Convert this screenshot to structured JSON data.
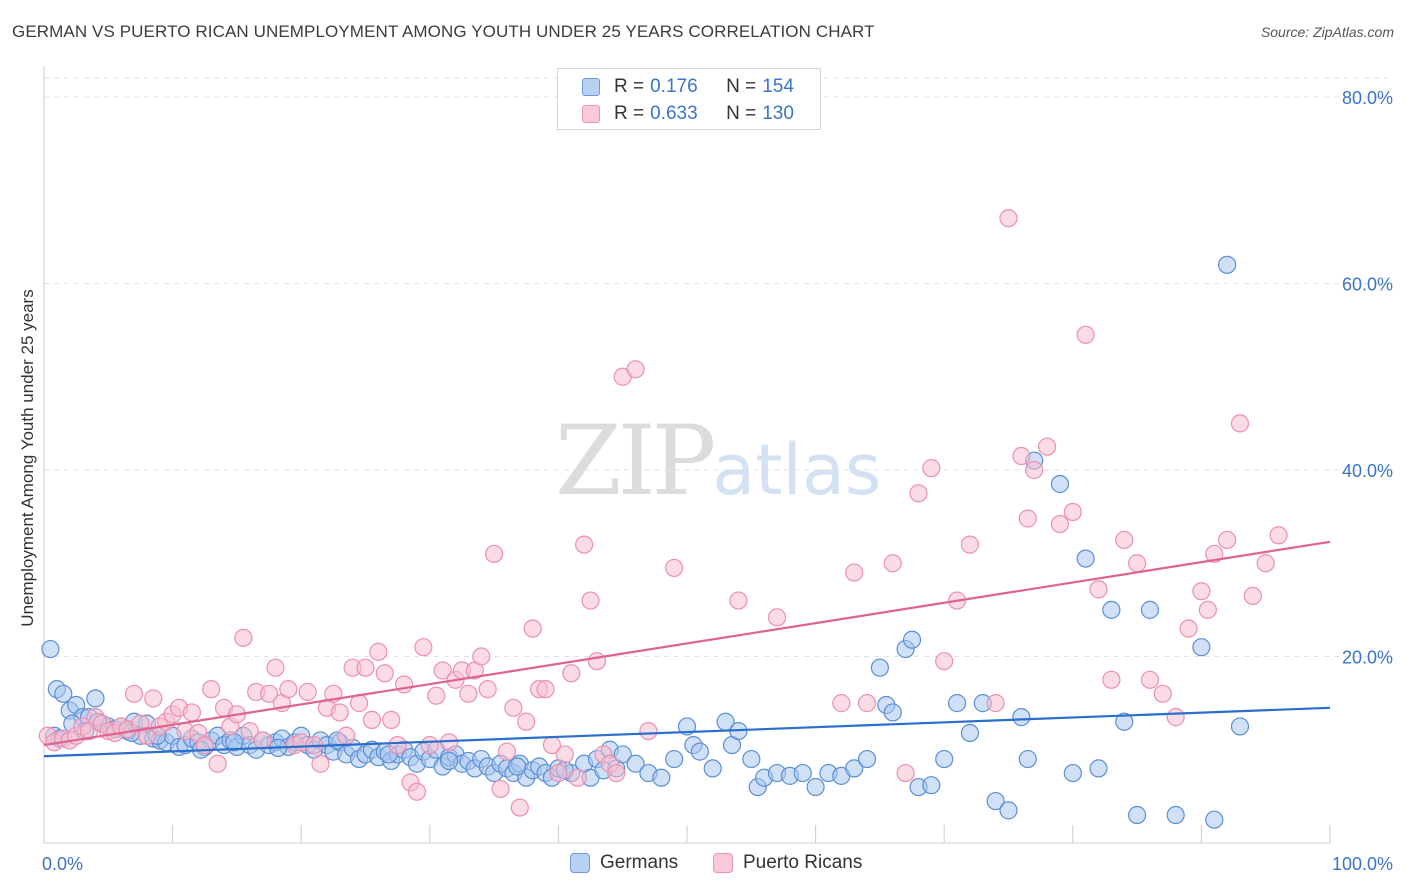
{
  "title": "GERMAN VS PUERTO RICAN UNEMPLOYMENT AMONG YOUTH UNDER 25 YEARS CORRELATION CHART",
  "source": "Source: ZipAtlas.com",
  "watermark": {
    "zip": "ZIP",
    "atlas": "atlas"
  },
  "legend": {
    "rows": [
      {
        "r_label": "R =",
        "r_value": "0.176",
        "n_label": "N =",
        "n_value": "154"
      },
      {
        "r_label": "R =",
        "r_value": "0.633",
        "n_label": "N =",
        "n_value": "130"
      }
    ]
  },
  "bottom_legend": [
    "Germans",
    "Puerto Ricans"
  ],
  "colors": {
    "german_fill": "#a9c7ef",
    "german_stroke": "#5b8fd6",
    "german_line": "#2a6fcc",
    "pr_fill": "#f7bfd0",
    "pr_stroke": "#ec8fb0",
    "pr_line": "#e0638f",
    "tick_label": "#3b74c9",
    "grid": "#e2e2e2"
  },
  "chart_data": {
    "type": "scatter",
    "title": "GERMAN VS PUERTO RICAN UNEMPLOYMENT AMONG YOUTH UNDER 25 YEARS CORRELATION CHART",
    "xlabel": "",
    "ylabel": "Unemployment Among Youth under 25 years",
    "xlim": [
      0,
      100
    ],
    "ylim": [
      0,
      80
    ],
    "x_tick_labels": [
      "0.0%",
      "100.0%"
    ],
    "y_ticks": [
      20,
      40,
      60,
      80
    ],
    "y_tick_labels": [
      "20.0%",
      "40.0%",
      "60.0%",
      "80.0%"
    ],
    "grid": true,
    "series": [
      {
        "name": "Germans",
        "r": 0.176,
        "n": 154,
        "trend": {
          "x": [
            0,
            100
          ],
          "y": [
            9.3,
            14.5
          ]
        },
        "points": [
          [
            0.5,
            20.8
          ],
          [
            1,
            16.5
          ],
          [
            1.5,
            16
          ],
          [
            2,
            14.2
          ],
          [
            2.5,
            14.8
          ],
          [
            3,
            13.5
          ],
          [
            3.5,
            13.5
          ],
          [
            4,
            15.5
          ],
          [
            4.5,
            12.8
          ],
          [
            5,
            12.5
          ],
          [
            5.5,
            12.2
          ],
          [
            6,
            12.5
          ],
          [
            6.5,
            12.0
          ],
          [
            7,
            13
          ],
          [
            7.5,
            11.5
          ],
          [
            8,
            12.8
          ],
          [
            8.5,
            11.2
          ],
          [
            9,
            11.0
          ],
          [
            9.5,
            10.8
          ],
          [
            10,
            11.5
          ],
          [
            10.5,
            10.3
          ],
          [
            11,
            10.5
          ],
          [
            11.5,
            11.2
          ],
          [
            12,
            10.8
          ],
          [
            12.5,
            10.3
          ],
          [
            13,
            11.0
          ],
          [
            13.5,
            11.5
          ],
          [
            14,
            10.5
          ],
          [
            14.5,
            11.0
          ],
          [
            15,
            10.3
          ],
          [
            15.5,
            11.5
          ],
          [
            16,
            10.5
          ],
          [
            16.5,
            10.0
          ],
          [
            17,
            11.0
          ],
          [
            17.5,
            10.5
          ],
          [
            18,
            10.8
          ],
          [
            18.5,
            11.2
          ],
          [
            19,
            10.3
          ],
          [
            19.5,
            10.8
          ],
          [
            20,
            11.5
          ],
          [
            20.5,
            10.5
          ],
          [
            21,
            10.0
          ],
          [
            21.5,
            11.0
          ],
          [
            22,
            10.5
          ],
          [
            22.5,
            9.8
          ],
          [
            23,
            10.8
          ],
          [
            23.5,
            9.5
          ],
          [
            24,
            10.2
          ],
          [
            24.5,
            9.0
          ],
          [
            25,
            9.5
          ],
          [
            25.5,
            10.0
          ],
          [
            26,
            9.2
          ],
          [
            26.5,
            9.8
          ],
          [
            27,
            8.8
          ],
          [
            27.5,
            9.5
          ],
          [
            28,
            10.0
          ],
          [
            28.5,
            9.2
          ],
          [
            29,
            8.5
          ],
          [
            29.5,
            9.8
          ],
          [
            30,
            9.0
          ],
          [
            30.5,
            10.0
          ],
          [
            31,
            8.2
          ],
          [
            31.5,
            9.2
          ],
          [
            32,
            9.5
          ],
          [
            32.5,
            8.5
          ],
          [
            33,
            8.8
          ],
          [
            33.5,
            8.0
          ],
          [
            34,
            9.0
          ],
          [
            34.5,
            8.2
          ],
          [
            35,
            7.5
          ],
          [
            35.5,
            8.5
          ],
          [
            36,
            8.0
          ],
          [
            36.5,
            7.5
          ],
          [
            37,
            8.5
          ],
          [
            37.5,
            7.0
          ],
          [
            38,
            7.8
          ],
          [
            38.5,
            8.2
          ],
          [
            39,
            7.5
          ],
          [
            39.5,
            7.0
          ],
          [
            40,
            8.0
          ],
          [
            41,
            7.5
          ],
          [
            42,
            8.5
          ],
          [
            42.5,
            7.0
          ],
          [
            43,
            9.0
          ],
          [
            43.5,
            7.8
          ],
          [
            44,
            10.0
          ],
          [
            44.5,
            8.0
          ],
          [
            45,
            9.5
          ],
          [
            46,
            8.5
          ],
          [
            47,
            7.5
          ],
          [
            48,
            7.0
          ],
          [
            49,
            9.0
          ],
          [
            50,
            12.5
          ],
          [
            50.5,
            10.5
          ],
          [
            51,
            9.8
          ],
          [
            52,
            8.0
          ],
          [
            53,
            13.0
          ],
          [
            53.5,
            10.5
          ],
          [
            54,
            12.0
          ],
          [
            55,
            9.0
          ],
          [
            55.5,
            6.0
          ],
          [
            56,
            7.0
          ],
          [
            57,
            7.5
          ],
          [
            58,
            7.2
          ],
          [
            59,
            7.5
          ],
          [
            60,
            6.0
          ],
          [
            61,
            7.5
          ],
          [
            62,
            7.2
          ],
          [
            63,
            8.0
          ],
          [
            64,
            9.0
          ],
          [
            65,
            18.8
          ],
          [
            65.5,
            14.8
          ],
          [
            66,
            14.0
          ],
          [
            67,
            20.8
          ],
          [
            67.5,
            21.8
          ],
          [
            68,
            6.0
          ],
          [
            69,
            6.2
          ],
          [
            70,
            9.0
          ],
          [
            71,
            15.0
          ],
          [
            72,
            11.8
          ],
          [
            73,
            15.0
          ],
          [
            74,
            4.5
          ],
          [
            75,
            3.5
          ],
          [
            76,
            13.5
          ],
          [
            76.5,
            9.0
          ],
          [
            77,
            41.0
          ],
          [
            79,
            38.5
          ],
          [
            80,
            7.5
          ],
          [
            81,
            30.5
          ],
          [
            82,
            8.0
          ],
          [
            83,
            25.0
          ],
          [
            84,
            13.0
          ],
          [
            85,
            3.0
          ],
          [
            86,
            25.0
          ],
          [
            88,
            3.0
          ],
          [
            90,
            21.0
          ],
          [
            91,
            2.5
          ],
          [
            92,
            62.0
          ],
          [
            93,
            12.5
          ],
          [
            0.8,
            11.5
          ],
          [
            1.2,
            11.2
          ],
          [
            2.2,
            12.8
          ],
          [
            3.2,
            12.0
          ],
          [
            4.2,
            13.0
          ],
          [
            6.8,
            11.8
          ],
          [
            8.8,
            11.5
          ],
          [
            12.2,
            10.0
          ],
          [
            14.8,
            10.8
          ],
          [
            18.2,
            10.2
          ],
          [
            22.8,
            11.0
          ],
          [
            26.8,
            9.5
          ],
          [
            31.5,
            8.8
          ],
          [
            36.8,
            8.2
          ],
          [
            40.5,
            7.8
          ]
        ]
      },
      {
        "name": "Puerto Ricans",
        "r": 0.633,
        "n": 130,
        "trend": {
          "x": [
            0,
            100
          ],
          "y": [
            10.5,
            32.3
          ]
        },
        "points": [
          [
            0.3,
            11.5
          ],
          [
            0.8,
            10.8
          ],
          [
            1.5,
            11.2
          ],
          [
            2,
            11.0
          ],
          [
            2.5,
            11.5
          ],
          [
            3,
            12.5
          ],
          [
            3.5,
            12.0
          ],
          [
            4,
            13.5
          ],
          [
            4.5,
            12.8
          ],
          [
            5,
            12.0
          ],
          [
            5.5,
            11.8
          ],
          [
            6,
            12.5
          ],
          [
            6.5,
            12.2
          ],
          [
            7,
            16.0
          ],
          [
            7.5,
            12.8
          ],
          [
            8,
            11.5
          ],
          [
            8.5,
            15.5
          ],
          [
            9,
            12.5
          ],
          [
            9.5,
            13.0
          ],
          [
            10,
            13.8
          ],
          [
            10.5,
            14.5
          ],
          [
            11,
            12.0
          ],
          [
            11.5,
            14.0
          ],
          [
            12,
            11.8
          ],
          [
            12.5,
            10.5
          ],
          [
            13,
            16.5
          ],
          [
            13.5,
            8.5
          ],
          [
            14,
            14.5
          ],
          [
            14.5,
            12.5
          ],
          [
            15,
            13.8
          ],
          [
            15.5,
            22.0
          ],
          [
            16,
            12.0
          ],
          [
            16.5,
            16.2
          ],
          [
            17,
            11.0
          ],
          [
            17.5,
            16.0
          ],
          [
            18,
            18.8
          ],
          [
            18.5,
            15.0
          ],
          [
            19,
            16.5
          ],
          [
            19.5,
            10.5
          ],
          [
            20,
            10.8
          ],
          [
            20.5,
            16.2
          ],
          [
            21,
            10.5
          ],
          [
            21.5,
            8.5
          ],
          [
            22,
            14.5
          ],
          [
            22.5,
            16.0
          ],
          [
            23,
            14.0
          ],
          [
            23.5,
            11.5
          ],
          [
            24,
            18.8
          ],
          [
            24.5,
            15.0
          ],
          [
            25,
            18.8
          ],
          [
            25.5,
            13.2
          ],
          [
            26,
            20.5
          ],
          [
            26.5,
            18.2
          ],
          [
            27,
            13.2
          ],
          [
            27.5,
            10.5
          ],
          [
            28,
            17.0
          ],
          [
            28.5,
            6.5
          ],
          [
            29,
            5.5
          ],
          [
            29.5,
            21.0
          ],
          [
            30,
            10.5
          ],
          [
            30.5,
            15.8
          ],
          [
            31,
            18.5
          ],
          [
            31.5,
            10.8
          ],
          [
            32,
            17.5
          ],
          [
            32.5,
            18.5
          ],
          [
            33,
            16.0
          ],
          [
            33.5,
            18.5
          ],
          [
            34,
            20.0
          ],
          [
            34.5,
            16.5
          ],
          [
            35,
            31.0
          ],
          [
            35.5,
            5.8
          ],
          [
            36,
            9.8
          ],
          [
            36.5,
            14.5
          ],
          [
            37,
            3.8
          ],
          [
            37.5,
            13.0
          ],
          [
            38,
            23.0
          ],
          [
            38.5,
            16.5
          ],
          [
            39,
            16.5
          ],
          [
            39.5,
            10.5
          ],
          [
            40,
            7.5
          ],
          [
            40.5,
            9.5
          ],
          [
            41,
            18.2
          ],
          [
            41.5,
            7.0
          ],
          [
            42,
            32.0
          ],
          [
            42.5,
            26.0
          ],
          [
            43,
            19.5
          ],
          [
            43.5,
            9.5
          ],
          [
            44,
            8.5
          ],
          [
            44.5,
            7.5
          ],
          [
            45,
            50.0
          ],
          [
            46,
            50.8
          ],
          [
            47,
            12.0
          ],
          [
            49,
            29.5
          ],
          [
            54,
            26.0
          ],
          [
            57,
            24.2
          ],
          [
            62,
            15.0
          ],
          [
            63,
            29.0
          ],
          [
            64,
            15.0
          ],
          [
            66,
            30.0
          ],
          [
            67,
            7.5
          ],
          [
            68,
            37.5
          ],
          [
            69,
            40.2
          ],
          [
            70,
            19.5
          ],
          [
            71,
            26.0
          ],
          [
            72,
            32.0
          ],
          [
            74,
            15.0
          ],
          [
            75,
            67.0
          ],
          [
            76,
            41.5
          ],
          [
            76.5,
            34.8
          ],
          [
            77,
            40.0
          ],
          [
            78,
            42.5
          ],
          [
            79,
            34.2
          ],
          [
            80,
            35.5
          ],
          [
            81,
            54.5
          ],
          [
            82,
            27.2
          ],
          [
            83,
            17.5
          ],
          [
            84,
            32.5
          ],
          [
            85,
            30.0
          ],
          [
            86,
            17.5
          ],
          [
            87,
            16.0
          ],
          [
            88,
            13.5
          ],
          [
            89,
            23.0
          ],
          [
            90,
            27.0
          ],
          [
            90.5,
            25.0
          ],
          [
            91,
            31.0
          ],
          [
            92,
            32.5
          ],
          [
            93,
            45.0
          ],
          [
            94,
            26.5
          ],
          [
            95,
            30.0
          ],
          [
            96,
            33.0
          ]
        ]
      }
    ]
  }
}
